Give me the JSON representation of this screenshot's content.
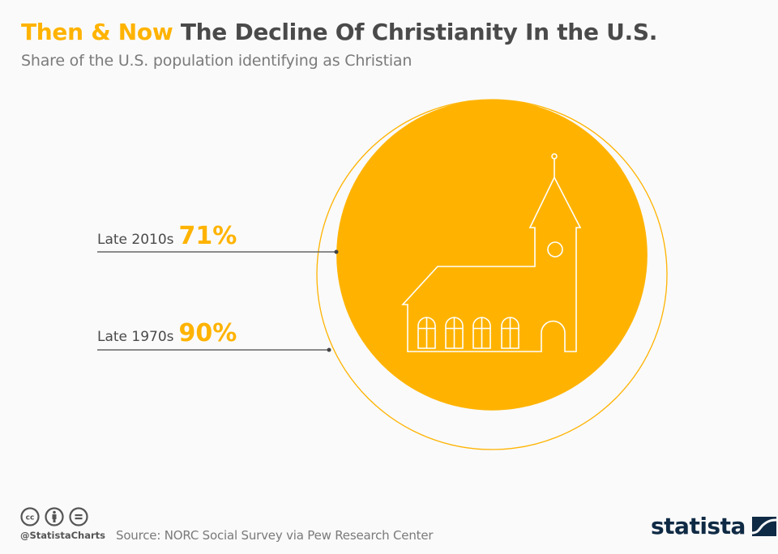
{
  "header": {
    "title_accent": "Then & Now",
    "title_main": "The Decline Of Christianity In the U.S.",
    "subtitle": "Share of the U.S. population identifying as Christian"
  },
  "chart_data": {
    "type": "area-circle",
    "title": "Then & Now The Decline Of Christianity In the U.S.",
    "subtitle": "Share of the U.S. population identifying as Christian",
    "unit": "%",
    "series": [
      {
        "name": "Late 2010s",
        "value": 71,
        "label": "71%",
        "style": "filled circle"
      },
      {
        "name": "Late 1970s",
        "value": 90,
        "label": "90%",
        "style": "outlined circle"
      }
    ],
    "icon": "church-icon",
    "colors": {
      "accent": "#ffb300",
      "text": "#4a4a4a",
      "leader": "#555555"
    }
  },
  "labels": {
    "late_2010s": {
      "period": "Late 2010s",
      "value": "71%"
    },
    "late_1970s": {
      "period": "Late 1970s",
      "value": "90%"
    }
  },
  "footer": {
    "handle": "@StatistaCharts",
    "source": "Source: NORC Social Survey via Pew Research Center",
    "brand": "statista",
    "license_icons": [
      "cc-icon",
      "by-attribution-icon",
      "nd-equals-icon"
    ]
  }
}
